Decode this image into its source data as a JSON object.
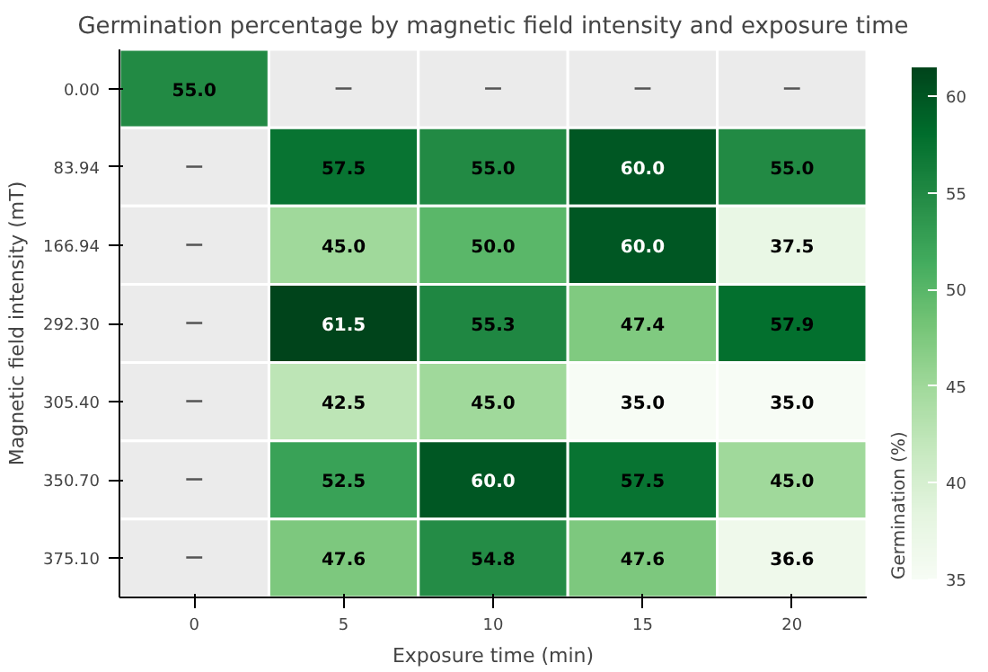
{
  "chart_data": {
    "type": "heatmap",
    "title": "Germination percentage by magnetic field intensity and exposure time",
    "xlabel": "Exposure time (min)",
    "ylabel": "Magnetic field intensity (mT)",
    "clabel": "Germination (%)",
    "categories": [
      "0",
      "5",
      "10",
      "15",
      "20"
    ],
    "y_categories": [
      "0.00",
      "83.94",
      "166.94",
      "292.30",
      "305.40",
      "350.70",
      "375.10"
    ],
    "cells": [
      [
        55.0,
        null,
        null,
        null,
        null
      ],
      [
        null,
        57.5,
        55.0,
        60.0,
        55.0
      ],
      [
        null,
        45.0,
        50.0,
        60.0,
        37.5
      ],
      [
        null,
        61.5,
        55.3,
        47.4,
        57.9
      ],
      [
        null,
        42.5,
        45.0,
        35.0,
        35.0
      ],
      [
        null,
        52.5,
        60.0,
        57.5,
        45.0
      ],
      [
        null,
        47.6,
        54.8,
        47.6,
        36.6
      ]
    ],
    "cell_labels": [
      [
        "55.0",
        "—",
        "—",
        "—",
        "—"
      ],
      [
        "—",
        "57.5",
        "55.0",
        "60.0",
        "55.0"
      ],
      [
        "—",
        "45.0",
        "50.0",
        "60.0",
        "37.5"
      ],
      [
        "—",
        "61.5",
        "55.3",
        "47.4",
        "57.9"
      ],
      [
        "—",
        "42.5",
        "45.0",
        "35.0",
        "35.0"
      ],
      [
        "—",
        "52.5",
        "60.0",
        "57.5",
        "45.0"
      ],
      [
        "—",
        "47.6",
        "54.8",
        "47.6",
        "36.6"
      ]
    ],
    "clim": [
      35,
      61.5
    ],
    "cticks": [
      35,
      40,
      45,
      50,
      55,
      60
    ]
  }
}
